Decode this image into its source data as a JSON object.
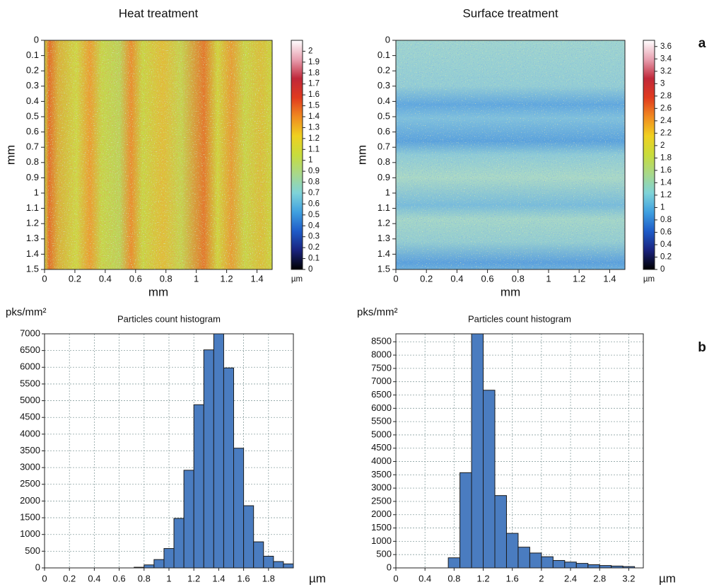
{
  "chart_data": [
    {
      "type": "heatmap",
      "title": "Heat treatment",
      "xlabel": "mm",
      "ylabel": "mm",
      "xlim": [
        0,
        1.5
      ],
      "xticks": [
        0,
        0.2,
        0.4,
        0.6,
        0.8,
        1,
        1.2,
        1.4
      ],
      "ylim": [
        1.5,
        0
      ],
      "yticks": [
        0,
        0.1,
        0.2,
        0.3,
        0.4,
        0.5,
        0.6,
        0.7,
        0.8,
        0.9,
        1,
        1.1,
        1.2,
        1.3,
        1.4,
        1.5
      ],
      "colorbar": {
        "lim": [
          0,
          2.1
        ],
        "ticks": [
          0,
          0.1,
          0.2,
          0.3,
          0.4,
          0.5,
          0.6,
          0.7,
          0.8,
          0.9,
          1,
          1.1,
          1.2,
          1.3,
          1.4,
          1.5,
          1.6,
          1.7,
          1.8,
          1.9,
          2
        ],
        "label": "µm",
        "colormap": [
          "#000000",
          "#1a237e",
          "#1e5bc8",
          "#3fa0e0",
          "#7fd3d8",
          "#a8d88a",
          "#c8dc3c",
          "#f0d020",
          "#f08a20",
          "#e03a1e",
          "#c0283a",
          "#e8a0b0",
          "#ffffff"
        ]
      }
    },
    {
      "type": "heatmap",
      "title": "Surface treatment",
      "xlabel": "mm",
      "ylabel": "mm",
      "annotation": "a",
      "xlim": [
        0,
        1.5
      ],
      "xticks": [
        0,
        0.2,
        0.4,
        0.6,
        0.8,
        1,
        1.2,
        1.4
      ],
      "ylim": [
        1.5,
        0
      ],
      "yticks": [
        0,
        0.1,
        0.2,
        0.3,
        0.4,
        0.5,
        0.6,
        0.7,
        0.8,
        0.9,
        1,
        1.1,
        1.2,
        1.3,
        1.4,
        1.5
      ],
      "colorbar": {
        "lim": [
          0,
          3.7
        ],
        "ticks": [
          0,
          0.2,
          0.4,
          0.6,
          0.8,
          1,
          1.2,
          1.4,
          1.6,
          1.8,
          2,
          2.2,
          2.4,
          2.6,
          2.8,
          3,
          3.2,
          3.4,
          3.6
        ],
        "label": "µm",
        "colormap": [
          "#000000",
          "#1a237e",
          "#1e5bc8",
          "#3fa0e0",
          "#7fd3d8",
          "#a8d88a",
          "#c8dc3c",
          "#f0d020",
          "#f08a20",
          "#e03a1e",
          "#c0283a",
          "#e8a0b0",
          "#ffffff"
        ]
      }
    },
    {
      "type": "histogram",
      "title": "Particles count histogram",
      "xlabel": "µm",
      "ylabel": "pks/mm²",
      "color": "#4a7cc0",
      "grid": true,
      "bins": [
        0.72,
        0.8,
        0.88,
        0.96,
        1.04,
        1.12,
        1.2,
        1.28,
        1.36,
        1.44,
        1.52,
        1.6,
        1.68,
        1.76,
        1.84,
        1.92,
        2.0
      ],
      "values": [
        20,
        90,
        250,
        580,
        1480,
        2920,
        4880,
        6520,
        7000,
        5980,
        3580,
        1860,
        780,
        350,
        190,
        120
      ],
      "xlim": [
        0,
        2.0
      ],
      "xticks": [
        0,
        0.2,
        0.4,
        0.6,
        0.8,
        1,
        1.2,
        1.4,
        1.6,
        1.8
      ],
      "ylim": [
        0,
        7000
      ],
      "yticks": [
        0,
        500,
        1000,
        1500,
        2000,
        2500,
        3000,
        3500,
        4000,
        4500,
        5000,
        5500,
        6000,
        6500,
        7000
      ]
    },
    {
      "type": "histogram",
      "title": "Particles count histogram",
      "xlabel": "µm",
      "ylabel": "pks/mm²",
      "color": "#4a7cc0",
      "grid": true,
      "annotation": "b",
      "bins": [
        0.72,
        0.88,
        1.04,
        1.2,
        1.36,
        1.52,
        1.68,
        1.84,
        2.0,
        2.16,
        2.32,
        2.48,
        2.64,
        2.8,
        2.96,
        3.12,
        3.28
      ],
      "values": [
        380,
        3580,
        8800,
        6680,
        2720,
        1300,
        780,
        560,
        420,
        280,
        220,
        170,
        120,
        90,
        70,
        50
      ],
      "xlim": [
        0,
        3.4
      ],
      "xticks": [
        0,
        0.4,
        0.8,
        1.2,
        1.6,
        2,
        2.4,
        2.8,
        3.2
      ],
      "ylim": [
        0,
        8800
      ],
      "yticks": [
        0,
        500,
        1000,
        1500,
        2000,
        2500,
        3000,
        3500,
        4000,
        4500,
        5000,
        5500,
        6000,
        6500,
        7000,
        7500,
        8000,
        8500
      ]
    }
  ]
}
